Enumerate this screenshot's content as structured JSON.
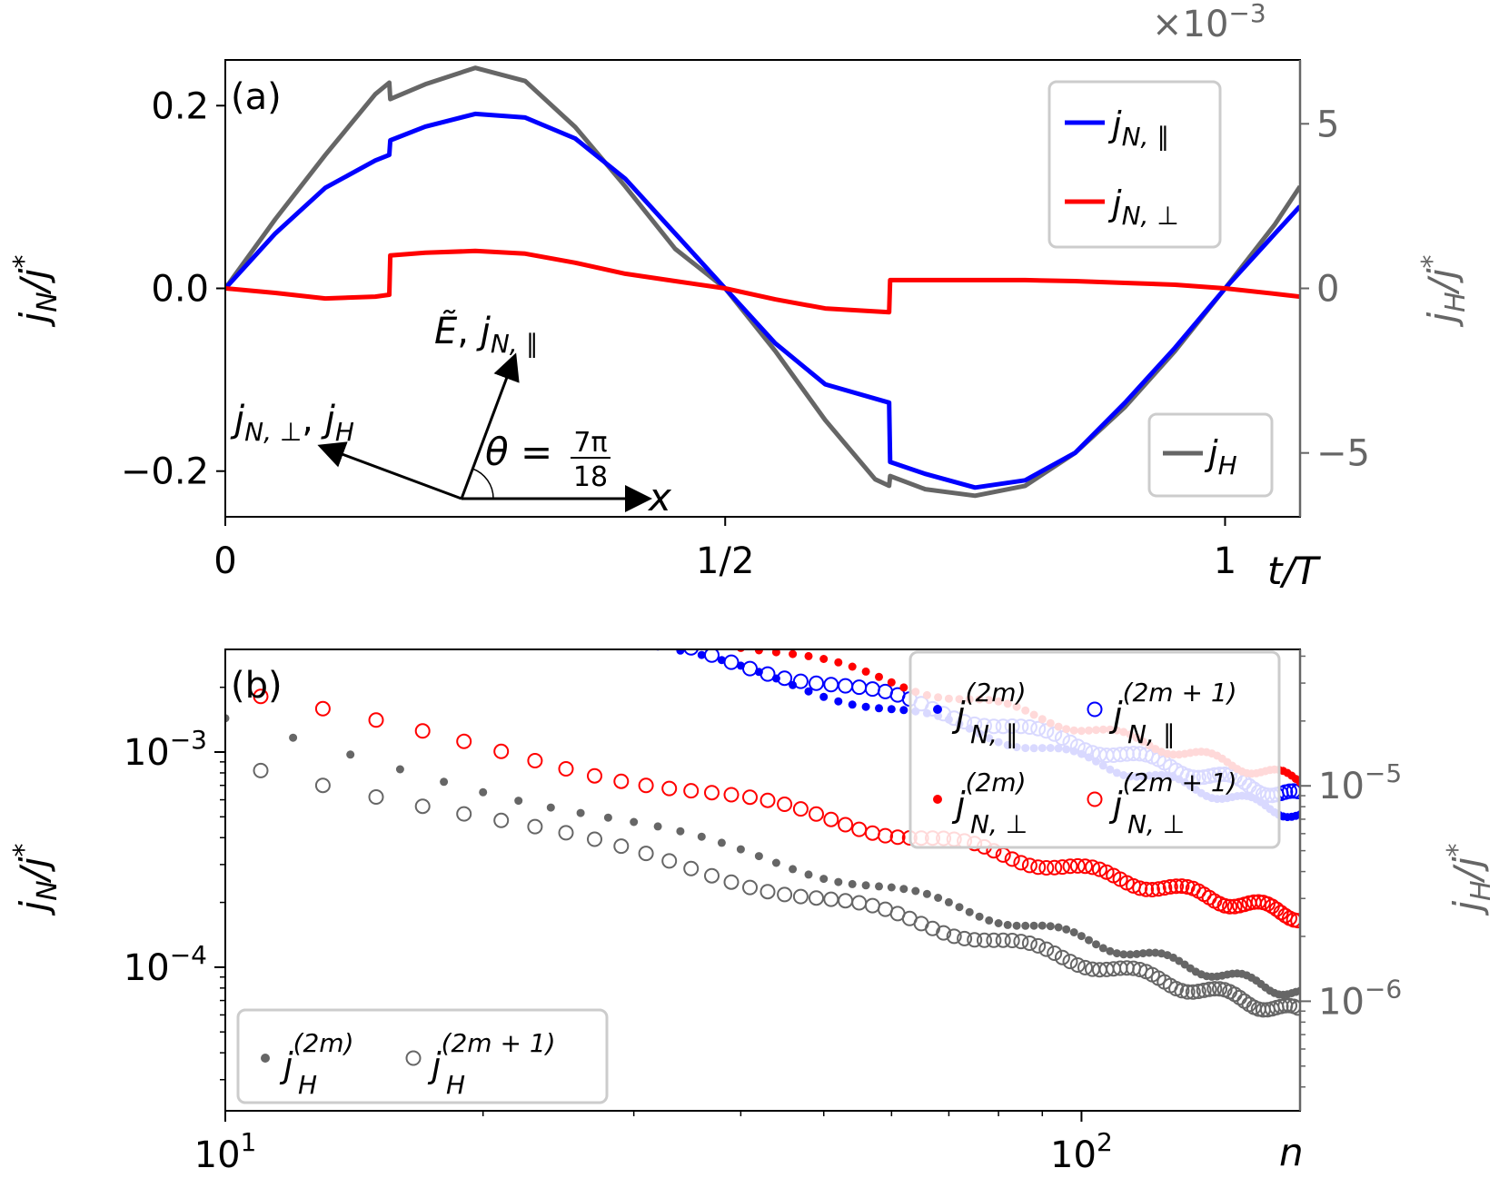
{
  "chart_data": [
    {
      "panel_label": "(a)",
      "type": "line",
      "xlabel": "t/T",
      "ylabel_left": "j_N/j^*",
      "ylabel_right": "j_H/j^*",
      "right_axis_scale_label": "×10⁻³",
      "x_ticks": [
        {
          "value": 0,
          "label": "0"
        },
        {
          "value": 0.5,
          "label": "1/2"
        },
        {
          "value": 1,
          "label": "1"
        }
      ],
      "y_left_ticks": [
        {
          "value": 0.2,
          "label": "0.2"
        },
        {
          "value": 0.0,
          "label": "0.0"
        },
        {
          "value": -0.2,
          "label": "−0.2"
        }
      ],
      "y_right_ticks": [
        {
          "value": 5,
          "label": "5"
        },
        {
          "value": 0,
          "label": "0"
        },
        {
          "value": -5,
          "label": "−5"
        }
      ],
      "xlim": [
        0,
        1.075
      ],
      "ylim_left": [
        -0.25,
        0.25
      ],
      "ylim_right": [
        -6.94,
        6.94
      ],
      "series": [
        {
          "name": "j_N,∥",
          "axis": "left",
          "color": "#0000ff",
          "points": [
            [
              0,
              0
            ],
            [
              0.05,
              0.06
            ],
            [
              0.1,
              0.11
            ],
            [
              0.15,
              0.14
            ],
            [
              0.164,
              0.146
            ],
            [
              0.165,
              0.162
            ],
            [
              0.2,
              0.177
            ],
            [
              0.25,
              0.191
            ],
            [
              0.3,
              0.187
            ],
            [
              0.35,
              0.164
            ],
            [
              0.4,
              0.12
            ],
            [
              0.45,
              0.06
            ],
            [
              0.5,
              0.0
            ],
            [
              0.55,
              -0.06
            ],
            [
              0.6,
              -0.105
            ],
            [
              0.664,
              -0.125
            ],
            [
              0.665,
              -0.19
            ],
            [
              0.7,
              -0.203
            ],
            [
              0.75,
              -0.218
            ],
            [
              0.8,
              -0.21
            ],
            [
              0.85,
              -0.18
            ],
            [
              0.9,
              -0.125
            ],
            [
              0.95,
              -0.065
            ],
            [
              1.0,
              0.0
            ],
            [
              1.05,
              0.06
            ],
            [
              1.075,
              0.09
            ]
          ]
        },
        {
          "name": "j_N,⊥",
          "axis": "left",
          "color": "#ff0000",
          "points": [
            [
              0,
              0
            ],
            [
              0.05,
              -0.005
            ],
            [
              0.1,
              -0.011
            ],
            [
              0.15,
              -0.009
            ],
            [
              0.164,
              -0.007
            ],
            [
              0.165,
              0.036
            ],
            [
              0.2,
              0.039
            ],
            [
              0.25,
              0.041
            ],
            [
              0.3,
              0.038
            ],
            [
              0.35,
              0.028
            ],
            [
              0.4,
              0.016
            ],
            [
              0.45,
              0.008
            ],
            [
              0.5,
              0.0
            ],
            [
              0.55,
              -0.012
            ],
            [
              0.6,
              -0.022
            ],
            [
              0.664,
              -0.026
            ],
            [
              0.665,
              0.009
            ],
            [
              0.7,
              0.009
            ],
            [
              0.75,
              0.009
            ],
            [
              0.8,
              0.009
            ],
            [
              0.85,
              0.008
            ],
            [
              0.9,
              0.006
            ],
            [
              0.95,
              0.004
            ],
            [
              1.0,
              0.0
            ],
            [
              1.05,
              -0.006
            ],
            [
              1.075,
              -0.009
            ]
          ]
        },
        {
          "name": "j_H",
          "axis": "right",
          "color": "#666666",
          "points": [
            [
              0,
              0
            ],
            [
              0.05,
              2.1
            ],
            [
              0.1,
              4.05
            ],
            [
              0.15,
              5.9
            ],
            [
              0.164,
              6.25
            ],
            [
              0.165,
              5.75
            ],
            [
              0.2,
              6.2
            ],
            [
              0.25,
              6.7
            ],
            [
              0.3,
              6.3
            ],
            [
              0.35,
              4.9
            ],
            [
              0.4,
              3.1
            ],
            [
              0.45,
              1.2
            ],
            [
              0.5,
              0.0
            ],
            [
              0.55,
              -1.9
            ],
            [
              0.6,
              -4.0
            ],
            [
              0.65,
              -5.8
            ],
            [
              0.664,
              -6.0
            ],
            [
              0.665,
              -5.7
            ],
            [
              0.7,
              -6.1
            ],
            [
              0.75,
              -6.3
            ],
            [
              0.8,
              -6.0
            ],
            [
              0.85,
              -5.0
            ],
            [
              0.9,
              -3.6
            ],
            [
              0.95,
              -1.9
            ],
            [
              1.0,
              0.0
            ],
            [
              1.05,
              1.95
            ],
            [
              1.075,
              3.1
            ]
          ]
        }
      ],
      "legend": [
        "j_N,∥",
        "j_N,⊥",
        "j_H"
      ],
      "inset": {
        "labels": [
          "Ẽ, j_N,∥",
          "j_N,⊥, j_H",
          "θ = 7π/18",
          "x"
        ]
      }
    },
    {
      "panel_label": "(b)",
      "type": "scatter",
      "scale": "log-log",
      "xlabel": "n",
      "ylabel_left": "j_N/j^*",
      "ylabel_right": "j_H/j^*",
      "xlim": [
        10,
        180
      ],
      "ylim_left": [
        2.15e-05,
        0.003
      ],
      "ylim_right": [
        3.1e-07,
        4.3e-05
      ],
      "x_ticks": [
        {
          "value": 10,
          "base": "10",
          "exp": "1"
        },
        {
          "value": 100,
          "base": "10",
          "exp": "2"
        }
      ],
      "y_left_ticks": [
        {
          "value": 0.001,
          "base": "10",
          "exp": "−3"
        },
        {
          "value": 0.0001,
          "base": "10",
          "exp": "−4"
        }
      ],
      "y_right_ticks": [
        {
          "value": 1e-05,
          "base": "10",
          "exp": "−5"
        },
        {
          "value": 1e-06,
          "base": "10",
          "exp": "−6"
        }
      ],
      "series": [
        {
          "name": "j_N,∥^(2m)",
          "marker": "filled",
          "color": "#0000ff",
          "axis": "left",
          "parity": "even",
          "c": 0.01,
          "p": -1.03
        },
        {
          "name": "j_N,∥^(2m+1)",
          "marker": "open",
          "color": "#0000ff",
          "axis": "left",
          "parity": "odd",
          "c": 0.01,
          "p": -0.965
        },
        {
          "name": "j_N,⊥^(2m)",
          "marker": "filled",
          "color": "#ff0000",
          "axis": "left",
          "parity": "even",
          "c": 0.0122,
          "p": -0.97
        },
        {
          "name": "j_N,⊥^(2m+1)",
          "marker": "open",
          "color": "#ff0000",
          "axis": "left",
          "parity": "odd",
          "c": 0.00186,
          "p": -0.82
        },
        {
          "name": "j_H^(2m)",
          "marker": "filled",
          "color": "#666666",
          "axis": "right",
          "parity": "even",
          "c": 2e-05,
          "p": -1.01
        },
        {
          "name": "j_H^(2m+1)",
          "marker": "open",
          "color": "#666666",
          "axis": "right",
          "parity": "odd",
          "c": 1.37e-05,
          "p": -0.95
        }
      ],
      "legend": [
        "j_N,∥^(2m)",
        "j_N,∥^(2m+1)",
        "j_N,⊥^(2m)",
        "j_N,⊥^(2m+1)",
        "j_H^(2m)",
        "j_H^(2m+1)"
      ]
    }
  ],
  "text": {
    "a_label": "(a)",
    "b_label": "(b)",
    "a_scale": "×10",
    "a_scale_exp": "−3",
    "xlabel_a": "t/T",
    "xlabel_b": "n",
    "ylab_j": "j",
    "ylab_N": "N",
    "ylab_H": "H",
    "ylab_slash": "/",
    "ylab_star": "*",
    "sub_par": "N, ∥",
    "sub_perp": "N, ⊥",
    "sub_H": "H",
    "sup_even": "(2m)",
    "sup_odd": "(2m + 1)",
    "inset_E": "Ẽ",
    "inset_comma": ", ",
    "inset_theta": "θ = ",
    "inset_num": "7π",
    "inset_den": "18",
    "inset_x": "x"
  }
}
